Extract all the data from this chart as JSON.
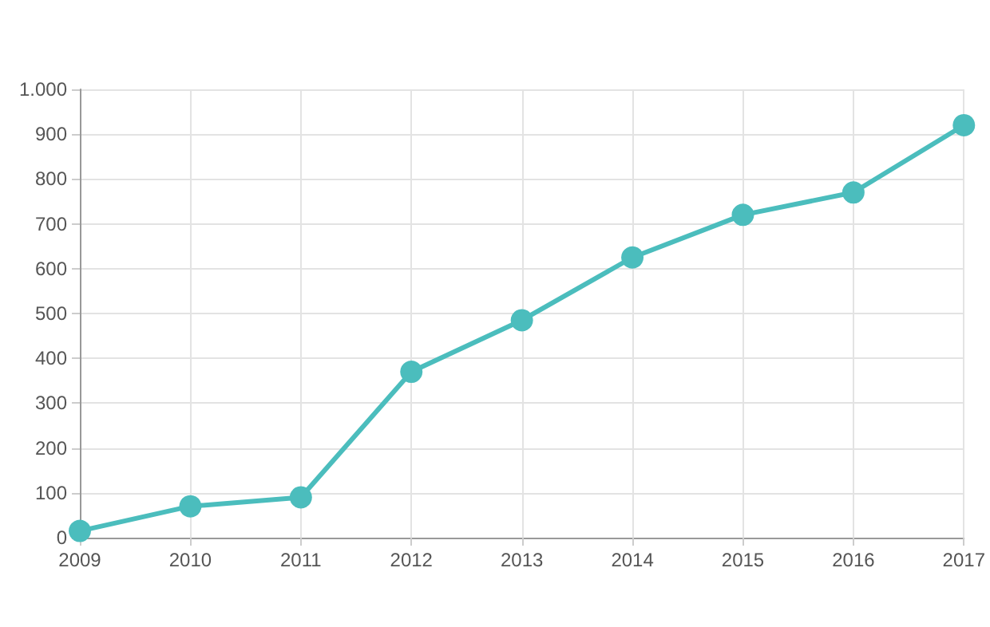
{
  "chart_data": {
    "type": "line",
    "categories": [
      "2009",
      "2010",
      "2011",
      "2012",
      "2013",
      "2014",
      "2015",
      "2016",
      "2017"
    ],
    "series": [
      {
        "color": "#4bbdbd",
        "values": [
          15,
          70,
          90,
          370,
          485,
          625,
          720,
          770,
          920
        ]
      }
    ],
    "ylim": [
      0,
      1000
    ],
    "yticks": [
      0,
      100,
      200,
      300,
      400,
      500,
      600,
      700,
      800,
      900,
      {
        "value": 1000,
        "label": "1.000"
      }
    ],
    "grid": true,
    "marker": "circle",
    "line_style": "solid"
  }
}
